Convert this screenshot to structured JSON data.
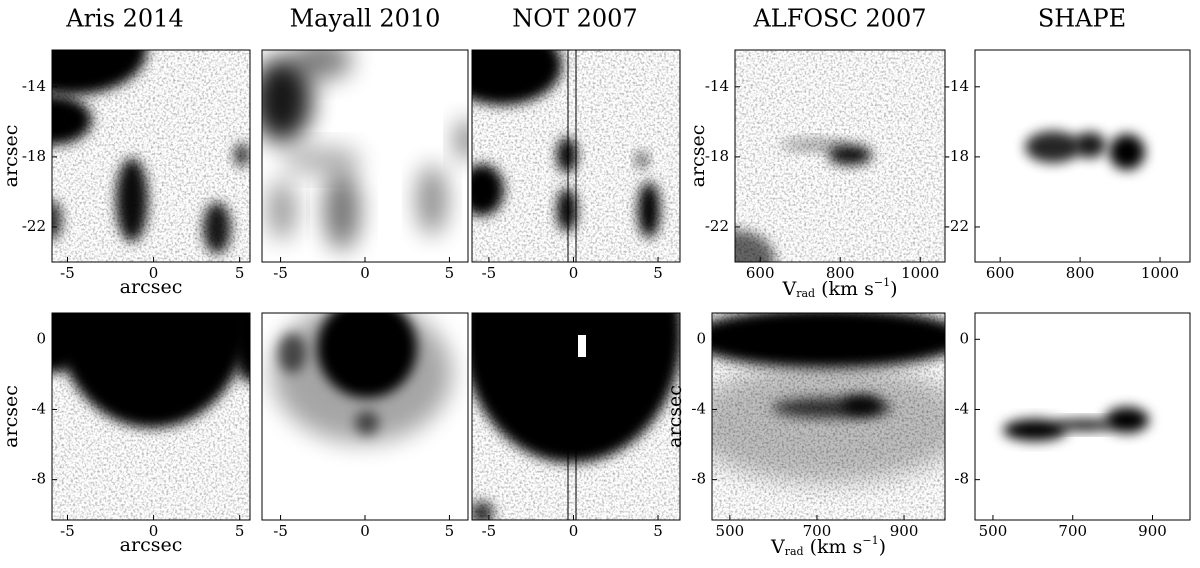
{
  "titles": [
    "Aris 2014",
    "Mayall 2010",
    "NOT 2007",
    "ALFOSC 2007",
    "SHAPE"
  ],
  "panels": [
    {
      "xlim": [
        -5.9,
        5.6
      ],
      "ylim": [
        -24,
        -11.9
      ],
      "xticks": [
        -5,
        0,
        5
      ],
      "yticks": [
        -14,
        -18,
        -22
      ],
      "xlabel": "arcsec",
      "ylabel": "arcsec"
    },
    {
      "xlim": [
        -6.1,
        6.1
      ],
      "ylim": [
        -24,
        -11.9
      ],
      "xticks": [
        -5,
        0,
        5
      ],
      "yticks": []
    },
    {
      "xlim": [
        -6,
        6.3
      ],
      "ylim": [
        -24,
        -11.9
      ],
      "xticks": [
        -5,
        0,
        5
      ],
      "yticks": []
    },
    {
      "xlim": [
        537,
        1062
      ],
      "ylim": [
        -24,
        -11.9
      ],
      "xticks": [
        600,
        800,
        1000
      ],
      "yticks": [
        -14,
        -18,
        -22
      ],
      "xlabel": {
        "main": "V",
        "sub": "rad",
        "unit": " (km s",
        "sup": "−1",
        "end": ")"
      },
      "ylabel": "arcsec"
    },
    {
      "xlim": [
        537,
        1075
      ],
      "ylim": [
        -24,
        -11.9
      ],
      "xticks": [
        600,
        800,
        1000
      ],
      "yticks": [
        -14,
        -18,
        -22
      ]
    },
    {
      "xlim": [
        -5.9,
        5.6
      ],
      "ylim": [
        -10.3,
        1.5
      ],
      "xticks": [
        -5,
        0,
        5
      ],
      "yticks": [
        0,
        -4,
        -8
      ],
      "xlabel": "arcsec",
      "ylabel": "arcsec"
    },
    {
      "xlim": [
        -6.1,
        6.1
      ],
      "ylim": [
        -10.3,
        1.5
      ],
      "xticks": [
        -5,
        0,
        5
      ],
      "yticks": []
    },
    {
      "xlim": [
        -6,
        6.3
      ],
      "ylim": [
        -10.3,
        1.5
      ],
      "xticks": [
        -5,
        0,
        5
      ],
      "yticks": []
    },
    {
      "xlim": [
        459,
        994
      ],
      "ylim": [
        -10.3,
        1.5
      ],
      "xticks": [
        500,
        700,
        900
      ],
      "yticks": [
        0,
        -4,
        -8
      ],
      "xlabel": {
        "main": "V",
        "sub": "rad",
        "unit": " (km s",
        "sup": "−1",
        "end": ")"
      },
      "ylabel": "arcsec"
    },
    {
      "xlim": [
        455,
        994
      ],
      "ylim": [
        -10.3,
        1.5
      ],
      "xticks": [
        500,
        700,
        900
      ],
      "yticks": [
        0,
        -4,
        -8
      ]
    }
  ]
}
